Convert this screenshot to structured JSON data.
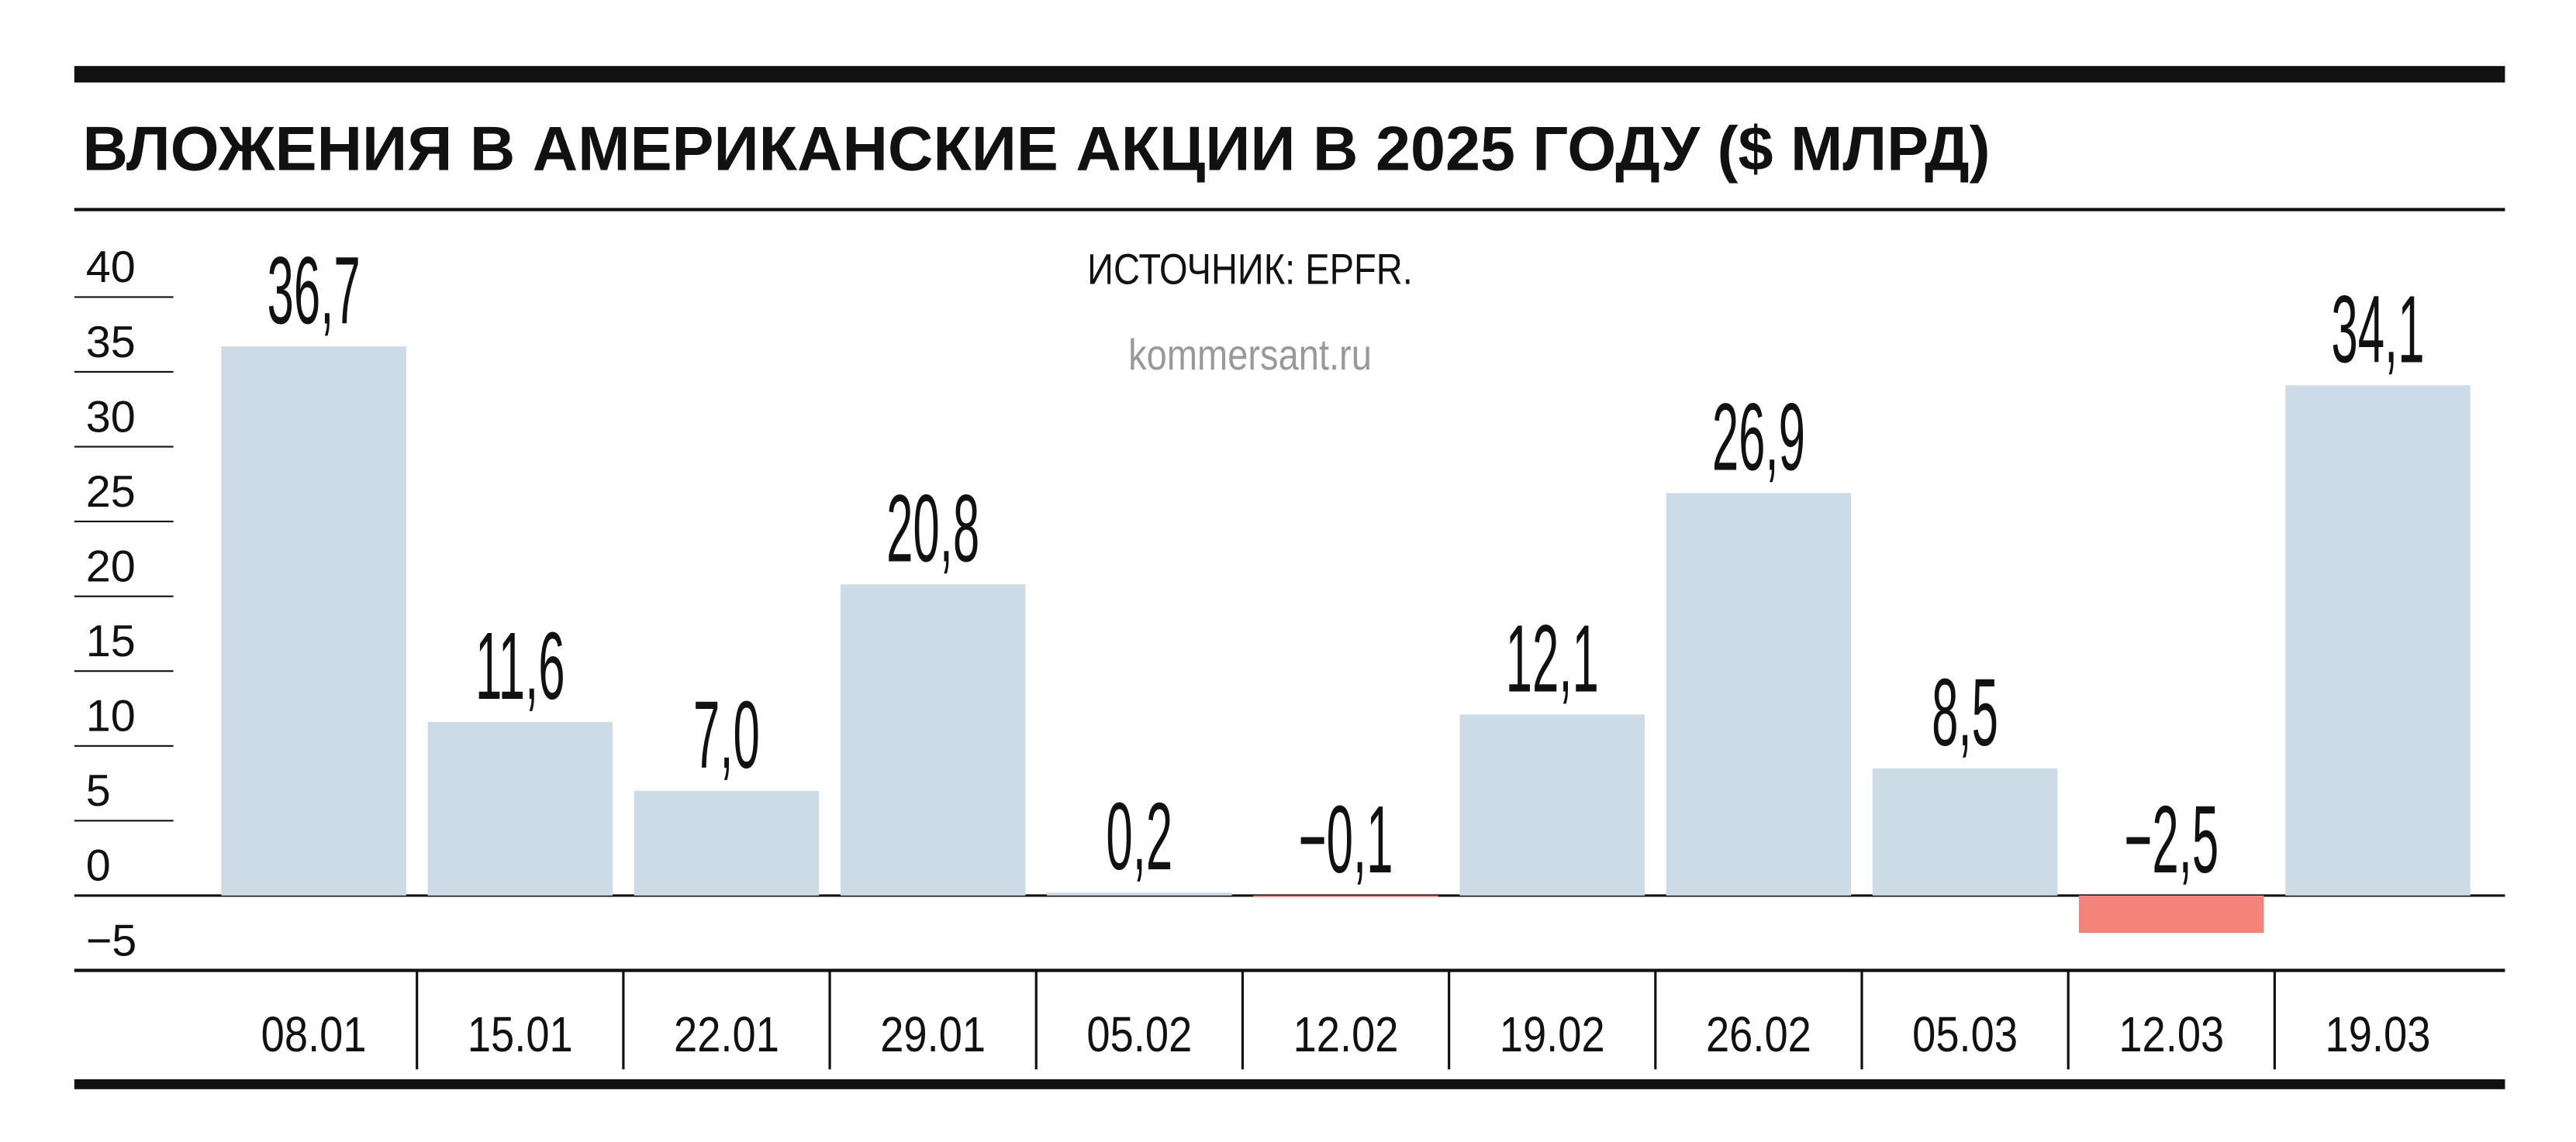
{
  "chart_data": {
    "type": "bar",
    "title": "ВЛОЖЕНИЯ В АМЕРИКАНСКИЕ АКЦИИ В 2025 ГОДУ ($ МЛРД)",
    "source": "ИСТОЧНИК: EPFR.",
    "watermark": "kommersant.ru",
    "categories": [
      "08.01",
      "15.01",
      "22.01",
      "29.01",
      "05.02",
      "12.02",
      "19.02",
      "26.02",
      "05.03",
      "12.03",
      "19.03"
    ],
    "values": [
      36.7,
      11.6,
      7.0,
      20.8,
      0.2,
      -0.1,
      12.1,
      26.9,
      8.5,
      -2.5,
      34.1
    ],
    "value_labels": [
      "36,7",
      "11,6",
      "7,0",
      "20,8",
      "0,2",
      "−0,1",
      "12,1",
      "26,9",
      "8,5",
      "−2,5",
      "34,1"
    ],
    "color": "#ccdbe5",
    "negative_color": "#f4837a",
    "ylim": [
      -5,
      40
    ],
    "yticks": [
      {
        "value": -5,
        "label": "−5"
      },
      0,
      5,
      10,
      15,
      20,
      25,
      30,
      35,
      40
    ]
  }
}
